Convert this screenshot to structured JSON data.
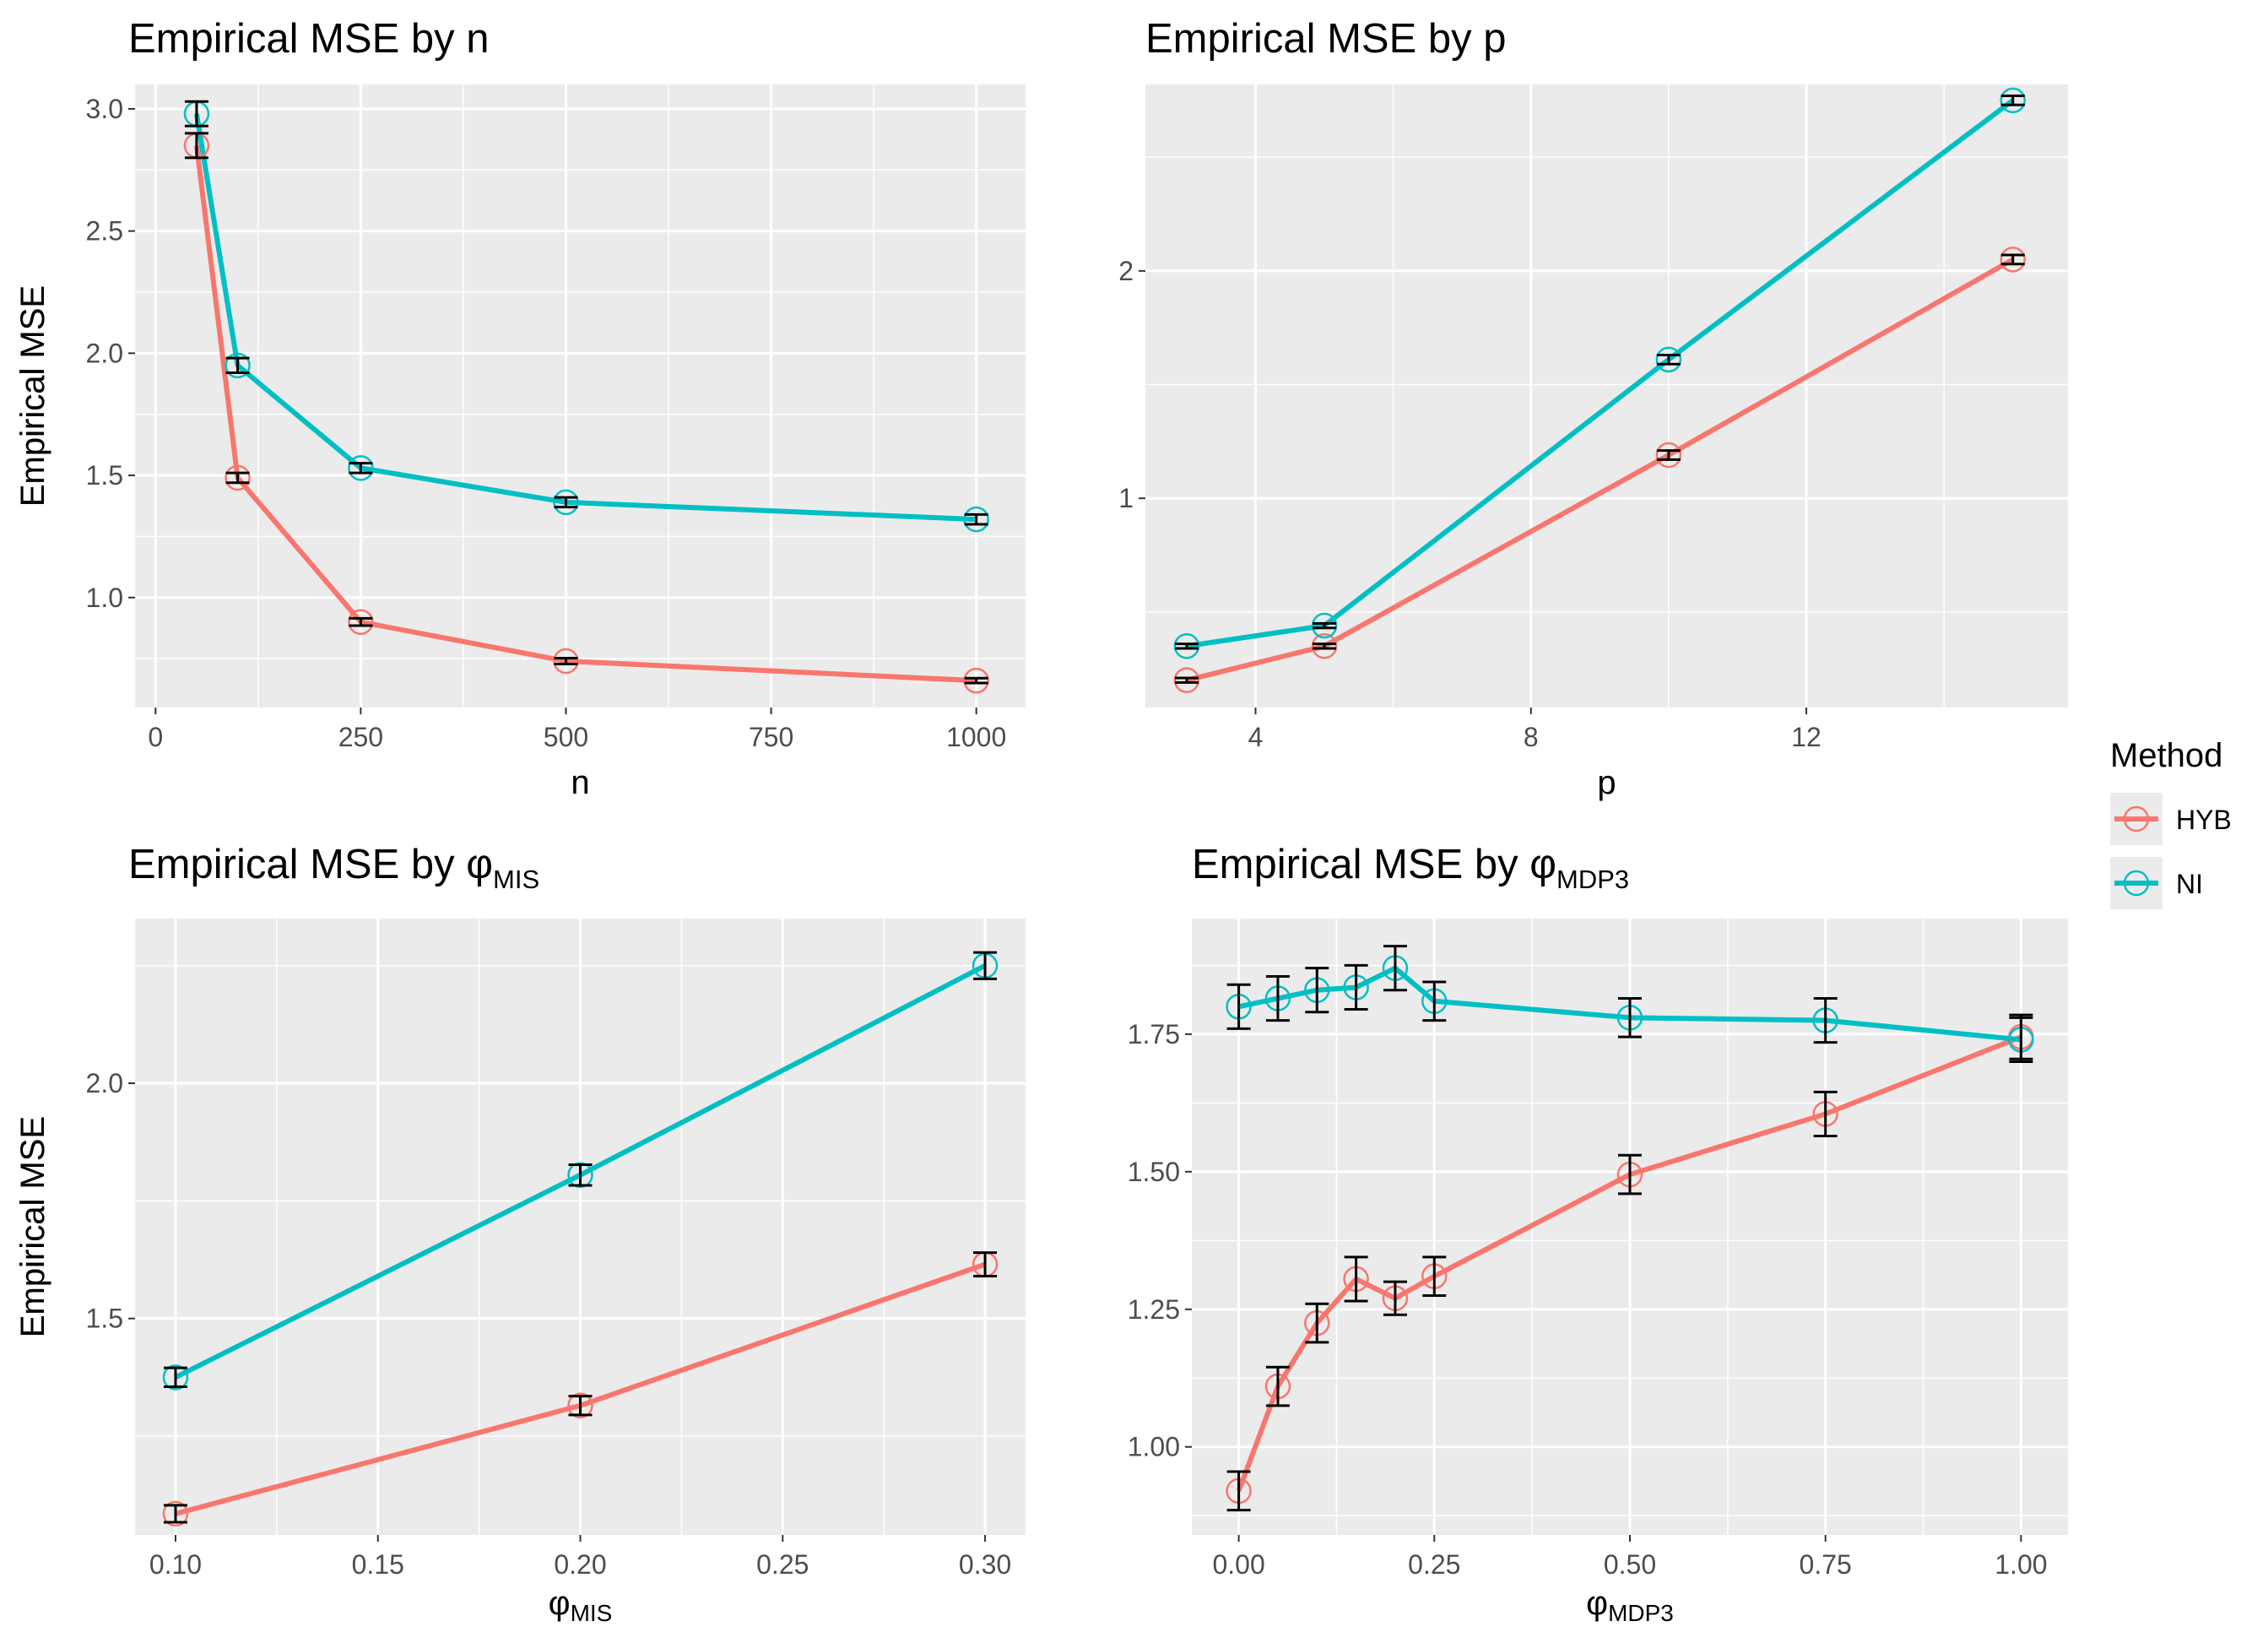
{
  "legend": {
    "title": "Method",
    "entries": [
      {
        "key": "HYB",
        "label": "HYB",
        "color": "#F8766D"
      },
      {
        "key": "NI",
        "label": "NI",
        "color": "#00BFC4"
      }
    ]
  },
  "chart_data": [
    {
      "type": "line",
      "title": "Empirical MSE by n",
      "title_sub": "",
      "xlabel": "n",
      "xlabel_sub": "",
      "ylabel": "Empirical MSE",
      "xlim": [
        -25,
        1060
      ],
      "ylim": [
        0.55,
        3.1
      ],
      "xticks": [
        {
          "value": 0,
          "label": "0"
        },
        {
          "value": 250,
          "label": "250"
        },
        {
          "value": 500,
          "label": "500"
        },
        {
          "value": 750,
          "label": "750"
        },
        {
          "value": 1000,
          "label": "1000"
        }
      ],
      "yticks": [
        {
          "value": 1.0,
          "label": "1.0"
        },
        {
          "value": 1.5,
          "label": "1.5"
        },
        {
          "value": 2.0,
          "label": "2.0"
        },
        {
          "value": 2.5,
          "label": "2.5"
        },
        {
          "value": 3.0,
          "label": "3.0"
        }
      ],
      "x": [
        50,
        100,
        250,
        500,
        1000
      ],
      "series": [
        {
          "name": "HYB",
          "values": [
            2.85,
            1.49,
            0.9,
            0.74,
            0.66
          ],
          "err": [
            0.05,
            0.02,
            0.015,
            0.012,
            0.01
          ]
        },
        {
          "name": "NI",
          "values": [
            2.98,
            1.95,
            1.53,
            1.39,
            1.32
          ],
          "err": [
            0.05,
            0.03,
            0.02,
            0.02,
            0.02
          ]
        }
      ],
      "grid": true
    },
    {
      "type": "line",
      "title": "Empirical MSE by p",
      "title_sub": "",
      "xlabel": "p",
      "xlabel_sub": "",
      "ylabel": "Empirical MSE",
      "xlim": [
        2.4,
        15.8
      ],
      "ylim": [
        0.08,
        2.82
      ],
      "xticks": [
        {
          "value": 4,
          "label": "4"
        },
        {
          "value": 8,
          "label": "8"
        },
        {
          "value": 12,
          "label": "12"
        }
      ],
      "yticks": [
        {
          "value": 1,
          "label": "1"
        },
        {
          "value": 2,
          "label": "2"
        }
      ],
      "x": [
        3,
        5,
        10,
        15
      ],
      "series": [
        {
          "name": "HYB",
          "values": [
            0.2,
            0.35,
            1.19,
            2.05
          ],
          "err": [
            0.01,
            0.01,
            0.02,
            0.02
          ]
        },
        {
          "name": "NI",
          "values": [
            0.35,
            0.44,
            1.61,
            2.75
          ],
          "err": [
            0.01,
            0.01,
            0.02,
            0.02
          ]
        }
      ],
      "grid": true
    },
    {
      "type": "line",
      "title": "Empirical MSE by φ",
      "title_sub": "MIS",
      "xlabel": "φ",
      "xlabel_sub": "MIS",
      "ylabel": "Empirical MSE",
      "xlim": [
        0.09,
        0.31
      ],
      "ylim": [
        1.04,
        2.35
      ],
      "xticks": [
        {
          "value": 0.1,
          "label": "0.10"
        },
        {
          "value": 0.15,
          "label": "0.15"
        },
        {
          "value": 0.2,
          "label": "0.20"
        },
        {
          "value": 0.25,
          "label": "0.25"
        },
        {
          "value": 0.3,
          "label": "0.30"
        }
      ],
      "yticks": [
        {
          "value": 1.5,
          "label": "1.5"
        },
        {
          "value": 2.0,
          "label": "2.0"
        }
      ],
      "x": [
        0.1,
        0.2,
        0.3
      ],
      "series": [
        {
          "name": "HYB",
          "values": [
            1.085,
            1.315,
            1.615
          ],
          "err": [
            0.018,
            0.02,
            0.025
          ]
        },
        {
          "name": "NI",
          "values": [
            1.375,
            1.805,
            2.25
          ],
          "err": [
            0.02,
            0.022,
            0.028
          ]
        }
      ],
      "grid": true
    },
    {
      "type": "line",
      "title": "Empirical MSE by φ",
      "title_sub": "MDP3",
      "xlabel": "φ",
      "xlabel_sub": "MDP3",
      "ylabel": "Empirical MSE",
      "xlim": [
        -0.06,
        1.06
      ],
      "ylim": [
        0.84,
        1.96
      ],
      "xticks": [
        {
          "value": 0.0,
          "label": "0.00"
        },
        {
          "value": 0.25,
          "label": "0.25"
        },
        {
          "value": 0.5,
          "label": "0.50"
        },
        {
          "value": 0.75,
          "label": "0.75"
        },
        {
          "value": 1.0,
          "label": "1.00"
        }
      ],
      "yticks": [
        {
          "value": 1.0,
          "label": "1.00"
        },
        {
          "value": 1.25,
          "label": "1.25"
        },
        {
          "value": 1.5,
          "label": "1.50"
        },
        {
          "value": 1.75,
          "label": "1.75"
        }
      ],
      "x": [
        0.0,
        0.05,
        0.1,
        0.15,
        0.2,
        0.25,
        0.5,
        0.75,
        1.0
      ],
      "series": [
        {
          "name": "HYB",
          "values": [
            0.92,
            1.11,
            1.225,
            1.305,
            1.27,
            1.31,
            1.495,
            1.605,
            1.745
          ],
          "err": [
            0.035,
            0.035,
            0.035,
            0.04,
            0.03,
            0.035,
            0.035,
            0.04,
            0.04
          ]
        },
        {
          "name": "NI",
          "values": [
            1.8,
            1.815,
            1.83,
            1.835,
            1.87,
            1.81,
            1.78,
            1.775,
            1.74
          ],
          "err": [
            0.04,
            0.04,
            0.04,
            0.04,
            0.04,
            0.035,
            0.035,
            0.04,
            0.04
          ]
        }
      ],
      "grid": true
    }
  ]
}
